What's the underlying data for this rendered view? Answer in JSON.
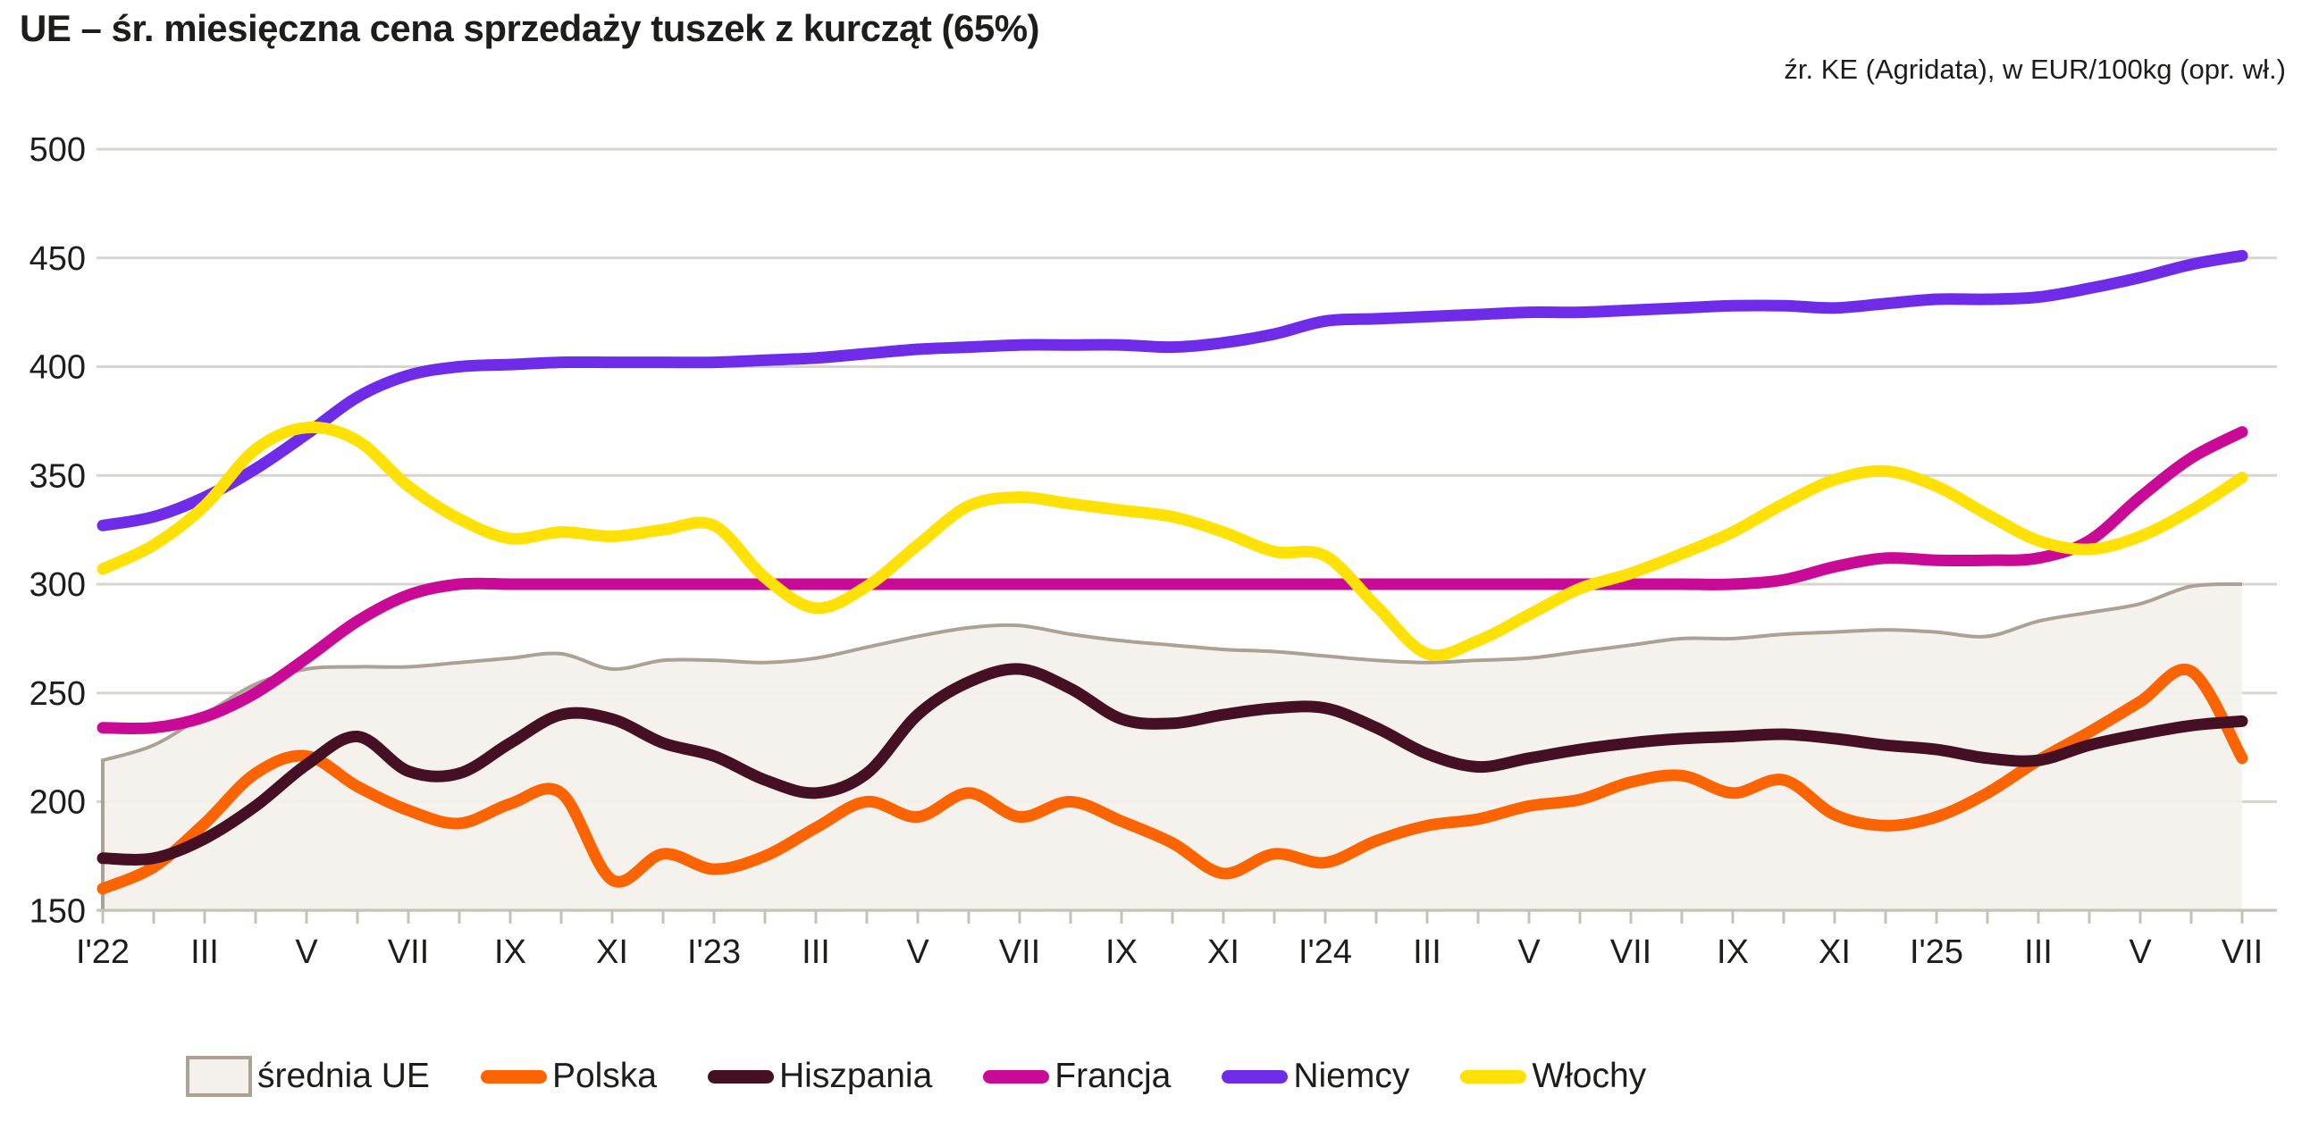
{
  "title": "UE – śr. miesięczna cena sprzedaży tuszek z kurcząt (65%)",
  "source_note": "źr. KE (Agridata), w EUR/100kg (opr. wł.)",
  "colors": {
    "text": "#1d1d1b",
    "gridline": "#d7d5d0",
    "axis": "#c6c0b5",
    "background": "#ffffff",
    "area_fill": "#f4f1ec",
    "area_edge": "#aba194"
  },
  "chart_data": {
    "type": "line",
    "title": "UE – śr. miesięczna cena sprzedaży tuszek z kurcząt (65%)",
    "subtitle": "źr. KE (Agridata), w EUR/100kg (opr. wł.)",
    "unit": "EUR/100kg",
    "x_description": "months from January 2022 to July 2025, ticks every month, labels every second month",
    "x_tick_labels": [
      "I'22",
      "III",
      "V",
      "VII",
      "IX",
      "XI",
      "I'23",
      "III",
      "V",
      "VII",
      "IX",
      "XI",
      "I'24",
      "III",
      "V",
      "VII",
      "IX",
      "XI",
      "I'25",
      "III",
      "V",
      "VII"
    ],
    "months_per_label": 2,
    "n_points": 43,
    "ylim": [
      150,
      500
    ],
    "yticks": [
      150,
      200,
      250,
      300,
      350,
      400,
      450,
      500
    ],
    "grid": true,
    "legend_position": "bottom",
    "series": [
      {
        "name": "średnia UE",
        "style": "area",
        "color": "#f4f1ec",
        "edge_color": "#aba194",
        "values": [
          219,
          226,
          240,
          254,
          261,
          262,
          262,
          264,
          266,
          268,
          261,
          265,
          265,
          264,
          266,
          271,
          276,
          280,
          281,
          277,
          274,
          272,
          270,
          269,
          267,
          265,
          264,
          265,
          266,
          269,
          272,
          275,
          275,
          277,
          278,
          279,
          278,
          276,
          283,
          287,
          291,
          299,
          300
        ]
      },
      {
        "name": "Polska",
        "style": "line",
        "color": "#fb6400",
        "values": [
          160,
          170,
          190,
          213,
          221,
          207,
          196,
          190,
          199,
          204,
          164,
          176,
          169,
          175,
          188,
          200,
          193,
          204,
          193,
          200,
          191,
          181,
          167,
          176,
          172,
          182,
          189,
          192,
          198,
          201,
          209,
          212,
          204,
          210,
          194,
          189,
          193,
          204,
          219,
          232,
          246,
          260,
          220
        ]
      },
      {
        "name": "Hiszpania",
        "style": "line",
        "color": "#451024",
        "values": [
          174,
          174,
          183,
          198,
          217,
          230,
          214,
          213,
          227,
          240,
          238,
          227,
          221,
          210,
          204,
          213,
          240,
          255,
          261,
          252,
          238,
          236,
          240,
          243,
          243,
          234,
          222,
          216,
          220,
          224,
          227,
          229,
          230,
          231,
          229,
          226,
          224,
          220,
          219,
          226,
          231,
          235,
          237
        ]
      },
      {
        "name": "Francja",
        "style": "line",
        "color": "#c90a96",
        "values": [
          234,
          234,
          239,
          250,
          266,
          283,
          295,
          300,
          300,
          300,
          300,
          300,
          300,
          300,
          300,
          300,
          300,
          300,
          300,
          300,
          300,
          300,
          300,
          300,
          300,
          300,
          300,
          300,
          300,
          300,
          300,
          300,
          300,
          302,
          308,
          312,
          311,
          311,
          312,
          320,
          340,
          358,
          370
        ]
      },
      {
        "name": "Niemcy",
        "style": "line",
        "color": "#6f2ce8",
        "values": [
          327,
          331,
          340,
          353,
          369,
          386,
          396,
          400,
          401,
          402,
          402,
          402,
          402,
          403,
          404,
          406,
          408,
          409,
          410,
          410,
          410,
          409,
          411,
          415,
          421,
          422,
          423,
          424,
          425,
          425,
          426,
          427,
          428,
          428,
          427,
          429,
          431,
          431,
          432,
          436,
          441,
          447,
          451
        ]
      },
      {
        "name": "Włochy",
        "style": "line",
        "color": "#ffe105",
        "values": [
          307,
          318,
          336,
          362,
          372,
          366,
          345,
          330,
          321,
          324,
          322,
          325,
          327,
          303,
          289,
          299,
          318,
          336,
          340,
          337,
          334,
          331,
          324,
          315,
          313,
          290,
          268,
          274,
          286,
          298,
          305,
          314,
          324,
          337,
          348,
          352,
          345,
          332,
          320,
          316,
          322,
          334,
          349
        ]
      }
    ]
  }
}
